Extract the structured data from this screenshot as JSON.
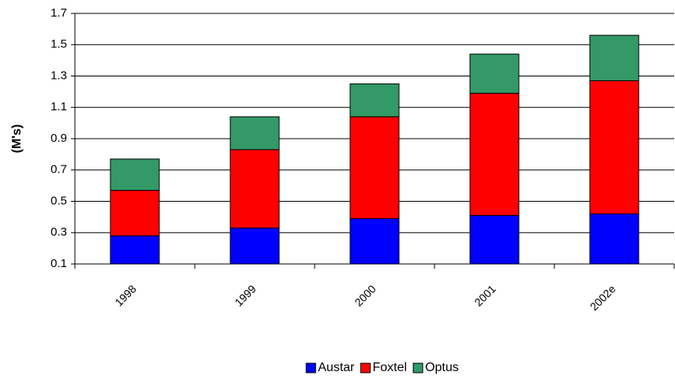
{
  "chart_data": {
    "type": "stacked_bar",
    "y_label": "(M's)",
    "categories": [
      "1998",
      "1999",
      "2000",
      "2001",
      "2002e"
    ],
    "series": [
      {
        "name": "Austar",
        "color": "#0000ff",
        "values": [
          0.28,
          0.33,
          0.39,
          0.41,
          0.42
        ]
      },
      {
        "name": "Foxtel",
        "color": "#ff0000",
        "values": [
          0.29,
          0.5,
          0.65,
          0.78,
          0.85
        ]
      },
      {
        "name": "Optus",
        "color": "#339966",
        "values": [
          0.2,
          0.21,
          0.21,
          0.25,
          0.29
        ]
      }
    ],
    "ylim": [
      0.1,
      1.7
    ],
    "yticks": [
      0.1,
      0.3,
      0.5,
      0.7,
      0.9,
      1.1,
      1.3,
      1.5,
      1.7
    ],
    "grid": true,
    "legend": "bottom"
  }
}
